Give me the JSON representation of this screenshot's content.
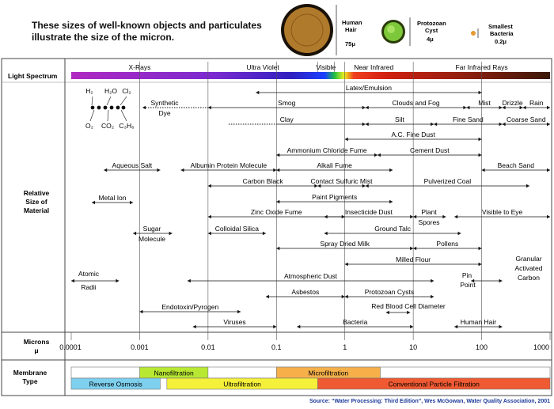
{
  "header": {
    "title_line1": "These sizes of well-known objects and particulates",
    "title_line2": "illustrate the size of the micron.",
    "hair": {
      "name": "Human Hair",
      "size": "75μ"
    },
    "cyst": {
      "name": "Protozoan Cyst",
      "size": "4μ"
    },
    "bacteria": {
      "name": "Smallest Bacteria",
      "size": "0.2μ"
    }
  },
  "rows": {
    "light_spectrum": "Light Spectrum",
    "relative_size": "Relative Size of Material",
    "microns": "Microns",
    "microns_unit": "μ",
    "membrane_type": "Membrane Type"
  },
  "spectrum_labels": [
    "X-Rays",
    "Ultra Violet",
    "Visible",
    "Near Infrared",
    "Far Infrared Rays"
  ],
  "molecules": {
    "h2": "H₂",
    "h2o": "H₂O",
    "cl2": "Cl₂",
    "o2": "O₂",
    "co2": "CO₂",
    "c3h6": "C₃H₆"
  },
  "materials": [
    {
      "label": "Latex/Emulsion",
      "from": 0.05,
      "to": 100
    },
    {
      "label": "Synthetic Dye",
      "from": 0.0011,
      "to": 0.01
    },
    {
      "label": "Smog",
      "from": 0.01,
      "to": 2
    },
    {
      "label": "Clouds and Fog",
      "from": 2,
      "to": 60
    },
    {
      "label": "Mist",
      "from": 60,
      "to": 200
    },
    {
      "label": "Drizzle",
      "from": 200,
      "to": 400
    },
    {
      "label": "Rain",
      "from": 400,
      "to": 1000
    },
    {
      "label": "Clay",
      "from": 0.01,
      "to": 2
    },
    {
      "label": "Silt",
      "from": 2,
      "to": 20
    },
    {
      "label": "Fine Sand",
      "from": 20,
      "to": 200
    },
    {
      "label": "Coarse Sand",
      "from": 200,
      "to": 1000
    },
    {
      "label": "A.C. Fine Dust",
      "from": 1,
      "to": 100
    },
    {
      "label": "Ammonium Chloride Fume",
      "from": 0.1,
      "to": 3
    },
    {
      "label": "Cement Dust",
      "from": 3,
      "to": 100
    },
    {
      "label": "Aqueous Salt",
      "from": 0.0003,
      "to": 0.002
    },
    {
      "label": "Albumin Protein Molecule",
      "from": 0.004,
      "to": 0.1
    },
    {
      "label": "Alkali Fume",
      "from": 0.1,
      "to": 5
    },
    {
      "label": "Beach Sand",
      "from": 100,
      "to": 1000
    },
    {
      "label": "Carbon Black",
      "from": 0.01,
      "to": 0.4
    },
    {
      "label": "Contact Sulfuric Mist",
      "from": 0.4,
      "to": 2
    },
    {
      "label": "Pulverized Coal",
      "from": 2,
      "to": 500
    },
    {
      "label": "Paint Pigments",
      "from": 0.1,
      "to": 5
    },
    {
      "label": "Metal Ion",
      "from": 0.0002,
      "to": 0.0008
    },
    {
      "label": "Zinc Oxide Fume",
      "from": 0.01,
      "to": 1
    },
    {
      "label": "Insecticide Dust",
      "from": 0.5,
      "to": 10
    },
    {
      "label": "Plant Spores",
      "from": 10,
      "to": 30
    },
    {
      "label": "Visible to Eye",
      "from": 40,
      "to": 1000
    },
    {
      "label": "Sugar Molecule",
      "from": 0.0008,
      "to": 0.003
    },
    {
      "label": "Colloidal Silica",
      "from": 0.01,
      "to": 0.07
    },
    {
      "label": "Ground Talc",
      "from": 0.5,
      "to": 50
    },
    {
      "label": "Spray Dried Milk",
      "from": 0.1,
      "to": 10
    },
    {
      "label": "Pollens",
      "from": 10,
      "to": 100
    },
    {
      "label": "Milled Flour",
      "from": 1,
      "to": 100
    },
    {
      "label": "Granular Activated Carbon",
      "from": 0,
      "to": 0
    },
    {
      "label": "Atomic Radii",
      "from": 0.0001,
      "to": 0.0005
    },
    {
      "label": "Atmospheric Dust",
      "from": 0.005,
      "to": 20
    },
    {
      "label": "Pin Point",
      "from": 70,
      "to": 200
    },
    {
      "label": "Asbestos",
      "from": 0.07,
      "to": 1
    },
    {
      "label": "Protozoan Cysts",
      "from": 1,
      "to": 20
    },
    {
      "label": "Red Blood Cell Diameter",
      "from": 4,
      "to": 9
    },
    {
      "label": "Endotoxin/Pyrogen",
      "from": 0.001,
      "to": 0.03
    },
    {
      "label": "Viruses",
      "from": 0.006,
      "to": 0.1
    },
    {
      "label": "Bacteria",
      "from": 0.2,
      "to": 10
    },
    {
      "label": "Human Hair",
      "from": 40,
      "to": 200
    }
  ],
  "axis_ticks": [
    "0.0001",
    "0.001",
    "0.01",
    "0.1",
    "1",
    "10",
    "100",
    "1000"
  ],
  "membranes": [
    {
      "label": "Nanofiltration",
      "from": 0.001,
      "to": 0.01,
      "color": "#b8e832"
    },
    {
      "label": "Microfiltration",
      "from": 0.1,
      "to": 3.3,
      "color": "#f5b04a"
    },
    {
      "label": "Reverse Osmosis",
      "from": 0.0001,
      "to": 0.002,
      "color": "#7ed0ef"
    },
    {
      "label": "Ultrafiltration",
      "from": 0.0025,
      "to": 0.4,
      "color": "#f5f03a"
    },
    {
      "label": "Conventional Particle Filtration",
      "from": 0.4,
      "to": 1000,
      "color": "#f05a32"
    }
  ],
  "source": "Source: “Water Processing: Third Edition”, Wes McGowan, Water Quality Association, 2001"
}
